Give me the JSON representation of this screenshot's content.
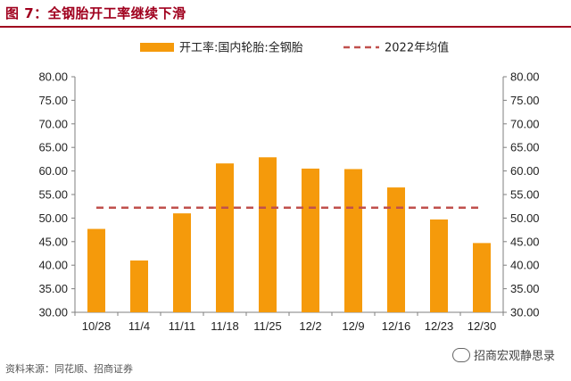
{
  "header": {
    "title": "图 7：全钢胎开工率继续下滑"
  },
  "footer": {
    "source": "资料来源：同花顺、招商证券",
    "watermark": "招商宏观静思录"
  },
  "chart_data": {
    "type": "bar",
    "categories": [
      "10/28",
      "11/4",
      "11/11",
      "11/18",
      "11/25",
      "12/2",
      "12/9",
      "12/16",
      "12/23",
      "12/30"
    ],
    "series": [
      {
        "name": "开工率:国内轮胎:全钢胎",
        "type": "bar",
        "color": "#f59a0b",
        "values": [
          47.7,
          41.0,
          51.0,
          61.6,
          62.9,
          60.5,
          60.4,
          56.5,
          49.7,
          44.7
        ]
      },
      {
        "name": "2022年均值",
        "type": "line-dashed",
        "color": "#c0504d",
        "values": [
          52.2,
          52.2,
          52.2,
          52.2,
          52.2,
          52.2,
          52.2,
          52.2,
          52.2,
          52.2
        ]
      }
    ],
    "ylim": [
      30,
      80
    ],
    "yticks": [
      "30.00",
      "35.00",
      "40.00",
      "45.00",
      "50.00",
      "55.00",
      "60.00",
      "65.00",
      "70.00",
      "75.00",
      "80.00"
    ],
    "y2ticks": [
      "30.00",
      "35.00",
      "40.00",
      "45.00",
      "50.00",
      "55.00",
      "60.00",
      "65.00",
      "70.00",
      "75.00",
      "80.00"
    ],
    "legend": "top-center",
    "grid": false
  }
}
